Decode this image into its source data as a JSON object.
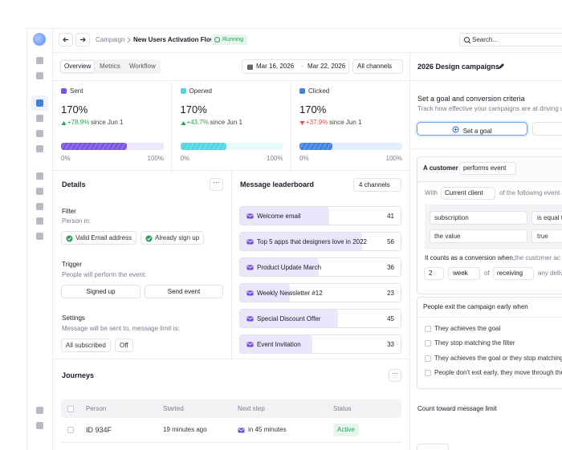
{
  "topbar": {
    "breadcrumb": "Campaign",
    "title": "New Users Activation Flow",
    "status": "Running",
    "search": "Search..."
  },
  "tabs": [
    "Overview",
    "Metrics",
    "Workflow"
  ],
  "date_from": "Mar 16, 2026",
  "date_sep": "-",
  "date_to": "Mar 22, 2026",
  "channels_filter": "All channels",
  "stats": [
    {
      "label": "Sent",
      "value": "170%",
      "change": "+78.9%",
      "since": "since Jun 1",
      "trend": "up",
      "color": "#7b55e0",
      "progress": 64,
      "min": "0%",
      "max": "100%"
    },
    {
      "label": "Opened",
      "value": "170%",
      "change": "+43.7%",
      "since": "since Jun 1",
      "trend": "up",
      "color": "#4fd6e3",
      "progress": 45,
      "min": "0%",
      "max": "100%"
    },
    {
      "label": "Clicked",
      "value": "170%",
      "change": "+37.9%",
      "since": "since Jun 1",
      "trend": "down",
      "color": "#3f82e6",
      "progress": 32,
      "min": "0%",
      "max": "100%"
    }
  ],
  "details": {
    "title": "Details",
    "filter": {
      "heading": "Filter",
      "sub": "Person in:",
      "chips": [
        "Valid Email address",
        "Already sign up"
      ]
    },
    "trigger": {
      "heading": "Trigger",
      "sub": "People will perform the event:",
      "buttons": [
        "Signed up",
        "Send event"
      ]
    },
    "settings": {
      "heading": "Settings",
      "sub": "Message will be sent to, message limit is:",
      "chips": [
        "All subscribed",
        "Off"
      ]
    }
  },
  "leaderboard": {
    "title": "Message leaderboard",
    "filter": "4 channels",
    "items": [
      {
        "name": "Welcome email",
        "count": 41
      },
      {
        "name": "Top 5 apps that designers love in 2022",
        "count": 56
      },
      {
        "name": "Product Update March",
        "count": 36
      },
      {
        "name": "Weekly Newsletter #12",
        "count": 23
      },
      {
        "name": "Special Discount Offer",
        "count": 45
      },
      {
        "name": "Event Invitation",
        "count": 33
      }
    ]
  },
  "journeys": {
    "title": "Journeys",
    "columns": [
      "Person",
      "Started",
      "Next step",
      "Status"
    ],
    "rows": [
      [
        "ID 934F",
        "19 minutes ago",
        "in 45 minutes",
        "Active"
      ]
    ]
  },
  "right": {
    "title": "2026 Design campaigns",
    "goal_heading": "Set a goal and conversion criteria",
    "goal_sub": "Track how effective your campaigns are at driving use",
    "goal_button": "Set a goal",
    "customer_label": "A customer",
    "customer_select": "performs event",
    "with": "With",
    "with_select": "Current client",
    "with_rest": "of the following event a",
    "conditions": [
      [
        "subscription",
        "is equal t"
      ],
      [
        "the value",
        "true"
      ]
    ],
    "conversion": "It counts as a conversion when,",
    "conversion_rest": "the customer ac",
    "count": "2",
    "unit": "week",
    "of": "of",
    "action": "receiving",
    "any": "any deliv",
    "exit_heading": "People exit the campaign early when",
    "exit_options": [
      "They achieves the goal",
      "They stop matching the filter",
      "They achieves the goal or they stop matching th",
      "People don't exit early, they move through the e"
    ],
    "limit": "Count toward message limit"
  }
}
